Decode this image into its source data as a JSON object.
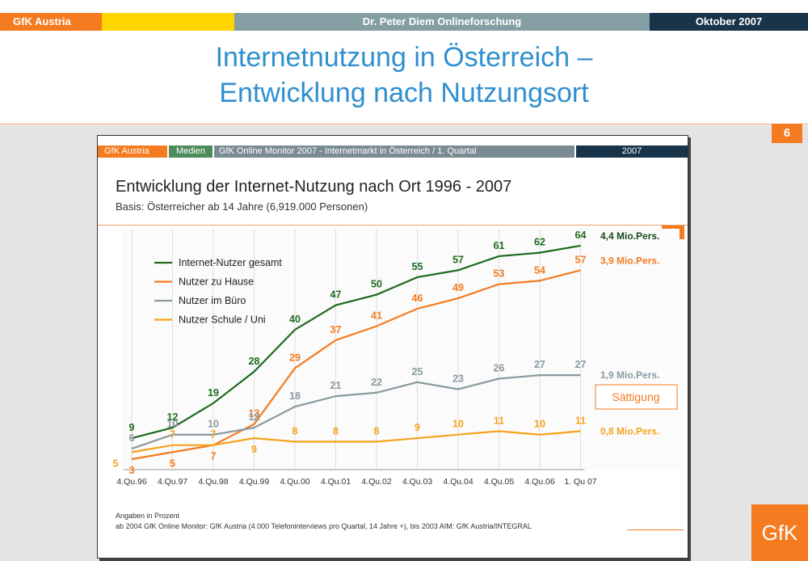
{
  "header": {
    "brand": "GfK Austria",
    "center": "Dr. Peter Diem  Onlineforschung",
    "date": "Oktober 2007"
  },
  "title": {
    "line1": "Internetnutzung in Österreich –",
    "line2": "Entwicklung nach Nutzungsort"
  },
  "page_number": "6",
  "logo_text": "GfK",
  "colors": {
    "orange": "#f47b20",
    "dark_green": "#1e6b1e",
    "gray": "#8a9aa0",
    "light_orange": "#f7a21b",
    "title_blue": "#2f8fd0",
    "navy": "#18344a"
  },
  "slide": {
    "header": {
      "brand": "GfK Austria",
      "medien": "Medien",
      "desc": "GfK Online Monitor 2007 - Internetmarkt in Österreich / 1. Quartal",
      "year": "2007"
    },
    "page_number": "6",
    "footnote1": "Angaben in Prozent",
    "footnote2": "ab 2004 GfK Online Monitor: GfK Austria (4.000 Telefoninterviews pro Quartal, 14 Jahre +), bis 2003 AIM: GfK Austria/INTEGRAL"
  },
  "chart_data": {
    "type": "line",
    "title": "Entwicklung der Internet-Nutzung nach Ort 1996 - 2007",
    "subtitle": "Basis: Österreicher ab 14 Jahre (6,919.000 Personen)",
    "unit": "Angaben in Prozent",
    "categories": [
      "4.Qu.96",
      "4.Qu.97",
      "4.Qu.98",
      "4.Qu.99",
      "4.Qu.00",
      "4.Qu.01",
      "4.Qu.02",
      "4.Qu.03",
      "4.Qu.04",
      "4.Qu.05",
      "4.Qu.06",
      "1. Qu 07"
    ],
    "ylim": [
      0,
      70
    ],
    "grid": "vertical",
    "legend_position": "top-left",
    "series": [
      {
        "name": "Internet-Nutzer gesamt",
        "color": "#1e6b1e",
        "values": [
          9,
          12,
          19,
          28,
          40,
          47,
          50,
          55,
          57,
          61,
          62,
          64
        ],
        "end_label": "4,4 Mio.Pers."
      },
      {
        "name": "Nutzer zu Hause",
        "color": "#f47b20",
        "values": [
          3,
          5,
          7,
          13,
          29,
          37,
          41,
          46,
          49,
          53,
          54,
          57
        ],
        "end_label": "3,9 Mio.Pers."
      },
      {
        "name": "Nutzer im Büro",
        "color": "#8a9aa0",
        "values": [
          6,
          10,
          10,
          12,
          18,
          21,
          22,
          25,
          23,
          26,
          27,
          27
        ],
        "end_label": "1,9 Mio.Pers."
      },
      {
        "name": "Nutzer Schule / Uni",
        "color": "#f7a21b",
        "values": [
          5,
          7,
          7,
          9,
          8,
          8,
          8,
          9,
          10,
          11,
          10,
          11
        ],
        "end_label": "0,8 Mio.Pers."
      }
    ],
    "annotation": "Sättigung"
  }
}
